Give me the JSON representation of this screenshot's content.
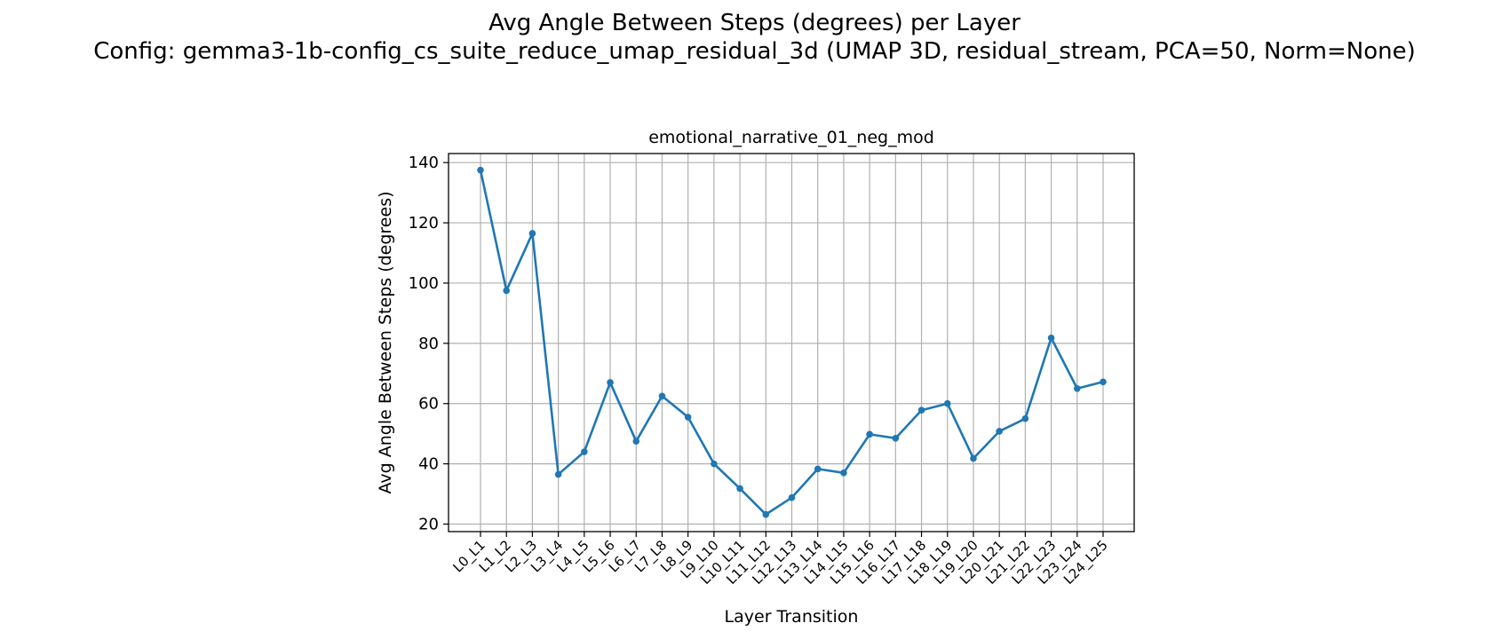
{
  "figure": {
    "title_line1": "Avg Angle Between Steps (degrees) per Layer",
    "title_line2": "Config: gemma3-1b-config_cs_suite_reduce_umap_residual_3d (UMAP 3D, residual_stream, PCA=50, Norm=None)"
  },
  "chart_data": {
    "type": "line",
    "title": "emotional_narrative_01_neg_mod",
    "xlabel": "Layer Transition",
    "ylabel": "Avg Angle Between Steps (degrees)",
    "ylim": [
      17.5,
      143
    ],
    "yticks": [
      20,
      40,
      60,
      80,
      100,
      120,
      140
    ],
    "grid": true,
    "color": "#1f77b4",
    "categories": [
      "L0_L1",
      "L1_L2",
      "L2_L3",
      "L3_L4",
      "L4_L5",
      "L5_L6",
      "L6_L7",
      "L7_L8",
      "L8_L9",
      "L9_L10",
      "L10_L11",
      "L11_L12",
      "L12_L13",
      "L13_L14",
      "L14_L15",
      "L15_L16",
      "L16_L17",
      "L17_L18",
      "L18_L19",
      "L19_L20",
      "L20_L21",
      "L21_L22",
      "L22_L23",
      "L23_L24",
      "L24_L25"
    ],
    "values": [
      137.5,
      97.5,
      116.5,
      36.5,
      44.0,
      67.0,
      47.5,
      62.5,
      55.5,
      40.0,
      31.8,
      23.2,
      28.8,
      38.3,
      37.0,
      49.8,
      48.5,
      57.8,
      60.0,
      41.8,
      50.8,
      55.0,
      81.8,
      65.0,
      67.2
    ]
  }
}
